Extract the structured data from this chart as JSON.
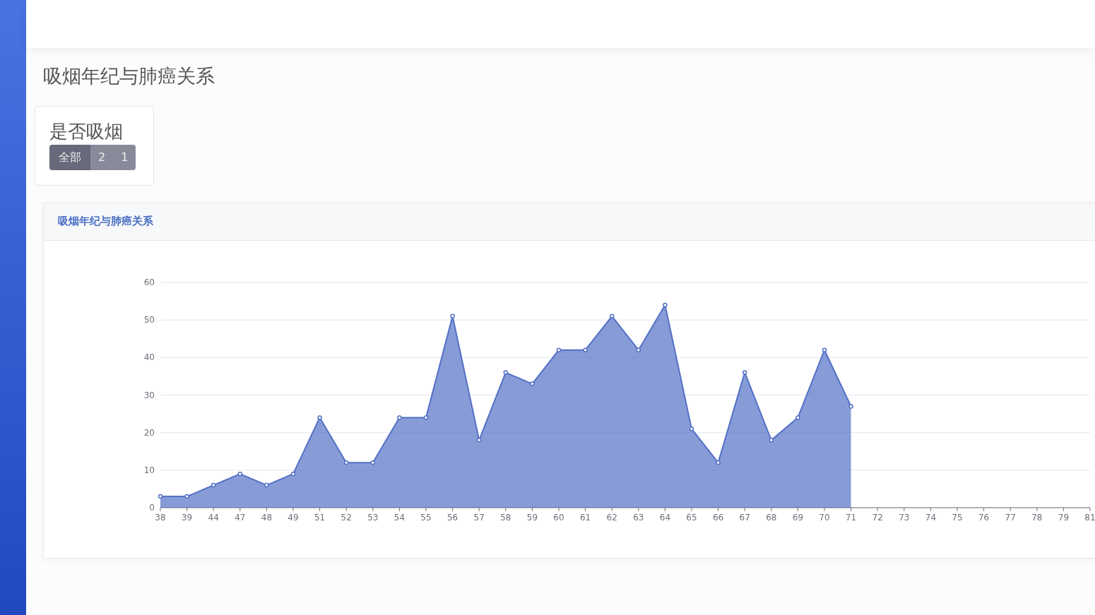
{
  "chart_data": {
    "type": "area",
    "title": "吸烟年纪与肺癌关系",
    "annotations": [
      "吸烟年纪与肺癌关系",
      "是否吸烟",
      "全部",
      "2",
      "1"
    ],
    "categories": [
      "38",
      "39",
      "44",
      "47",
      "48",
      "49",
      "51",
      "52",
      "53",
      "54",
      "55",
      "56",
      "57",
      "58",
      "59",
      "60",
      "61",
      "62",
      "63",
      "64",
      "65",
      "66",
      "67",
      "68",
      "69",
      "70",
      "71",
      "72",
      "73",
      "74",
      "75",
      "76",
      "77",
      "78",
      "79",
      "81"
    ],
    "series": [
      {
        "color": "#5470c6",
        "values": [
          3,
          3,
          6,
          9,
          6,
          9,
          24,
          12,
          12,
          24,
          24,
          51,
          18,
          36,
          33,
          42,
          42,
          51,
          42,
          54,
          21,
          12,
          36,
          18,
          24,
          42,
          27,
          null,
          null,
          null,
          null,
          null,
          null,
          null,
          null,
          null
        ]
      }
    ],
    "ylim": [
      0,
      60
    ],
    "yticks": [
      0,
      10,
      20,
      30,
      40,
      50,
      60
    ],
    "grid": "y",
    "marker": "circle",
    "line_style": "solid"
  }
}
